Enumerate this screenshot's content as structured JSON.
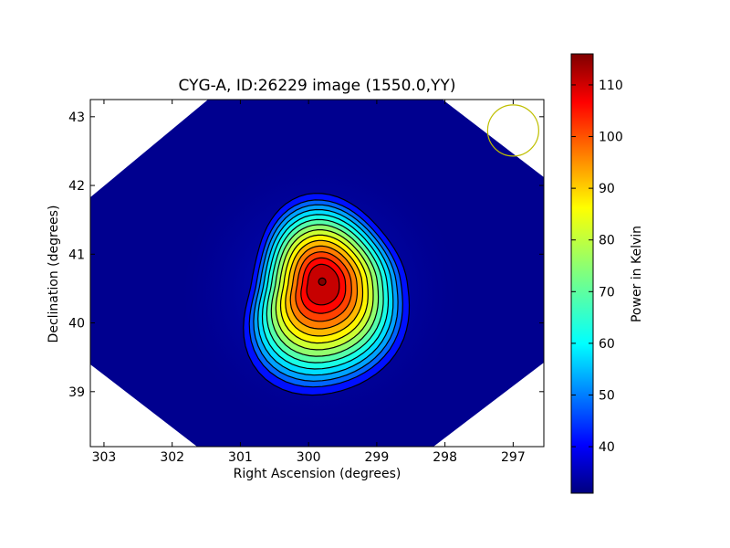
{
  "chart_data": {
    "type": "heatmap",
    "title": "CYG-A, ID:26229 image (1550.0,YY)",
    "xlabel": "Right Ascension (degrees)",
    "ylabel": "Declination (degrees)",
    "xlim": [
      303.2,
      296.55
    ],
    "ylim": [
      38.2,
      43.25
    ],
    "xticks": [
      303,
      302,
      301,
      300,
      299,
      298,
      297
    ],
    "yticks": [
      39,
      40,
      41,
      42,
      43
    ],
    "source_peak": {
      "ra": 299.8,
      "dec": 40.6,
      "value": 115
    },
    "contour_levels_kelvin": [
      43,
      50,
      55,
      60,
      65,
      70,
      75,
      80,
      85,
      90,
      95,
      100,
      105,
      110
    ],
    "beam_marker": {
      "ra": 297.0,
      "dec": 42.8,
      "shape": "circle",
      "color": "#bfbf00"
    },
    "colorbar": {
      "label": "Power in Kelvin",
      "min": 31,
      "max": 116,
      "ticks": [
        40,
        50,
        60,
        70,
        80,
        90,
        100,
        110
      ],
      "colormap": "jet"
    },
    "grid": false,
    "legend": "none"
  },
  "colors": {
    "background_field": "#00008f",
    "contour": "#000000",
    "beam_marker": "#bfbf00"
  }
}
